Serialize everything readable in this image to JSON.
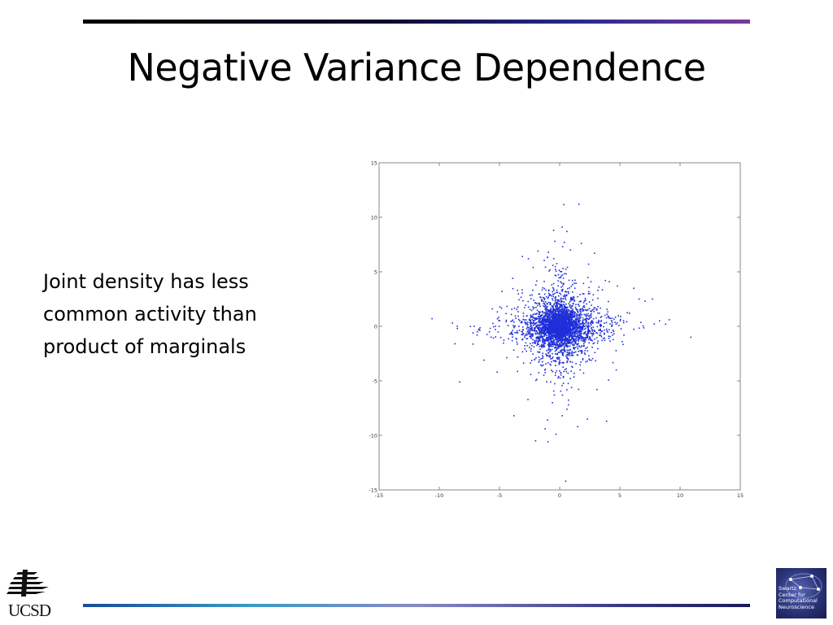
{
  "slide": {
    "title": "Negative Variance Dependence",
    "body_lines": [
      "Joint density has less",
      "common activity than",
      "product of marginals"
    ]
  },
  "logos": {
    "left_text": "UCSD",
    "right_lines": [
      "Swartz",
      "Center for",
      "Computational",
      "Neuroscience"
    ]
  },
  "colors": {
    "points": "#1f2fd8",
    "axes": "#888888",
    "title": "#000000"
  },
  "chart_data": {
    "type": "scatter",
    "title": "",
    "xlabel": "",
    "ylabel": "",
    "xlim": [
      -15,
      15
    ],
    "ylim": [
      -15,
      15
    ],
    "xticks": [
      -15,
      -10,
      -5,
      0,
      5,
      10,
      15
    ],
    "yticks": [
      -15,
      -10,
      -5,
      0,
      5,
      10,
      15
    ],
    "xtick_labels": [
      "-15",
      "-10",
      "-5",
      "0",
      "5",
      "10",
      "15"
    ],
    "ytick_labels": [
      "-15",
      "-10",
      "-5",
      "0",
      "5",
      "10",
      "15"
    ],
    "grid": false,
    "legend": "none",
    "series": [
      {
        "color": "#1f2fd8",
        "points": [
          [
            1.6,
            11.2
          ],
          [
            0.2,
            9.1
          ],
          [
            -0.5,
            8.8
          ],
          [
            0.6,
            8.7
          ],
          [
            1.8,
            7.6
          ],
          [
            -0.4,
            7.8
          ],
          [
            -1.8,
            6.9
          ],
          [
            -3.1,
            6.4
          ],
          [
            -2.6,
            6.2
          ],
          [
            0.9,
            7.0
          ],
          [
            2.4,
            5.7
          ],
          [
            -3.9,
            4.4
          ],
          [
            -4.8,
            3.2
          ],
          [
            3.8,
            4.2
          ],
          [
            4.8,
            3.7
          ],
          [
            6.6,
            2.5
          ],
          [
            7.1,
            2.3
          ],
          [
            7.7,
            2.5
          ],
          [
            8.3,
            0.5
          ],
          [
            9.1,
            0.6
          ],
          [
            8.8,
            0.2
          ],
          [
            10.9,
            -1.0
          ],
          [
            -10.6,
            0.7
          ],
          [
            -8.9,
            0.3
          ],
          [
            -8.5,
            0.0
          ],
          [
            -8.5,
            -0.2
          ],
          [
            -8.7,
            -1.6
          ],
          [
            -7.1,
            0.0
          ],
          [
            -7.2,
            -0.6
          ],
          [
            -8.3,
            -5.1
          ],
          [
            -6.3,
            -3.1
          ],
          [
            -5.2,
            -4.2
          ],
          [
            -3.8,
            -8.2
          ],
          [
            -2.0,
            -10.5
          ],
          [
            -1.2,
            -9.4
          ],
          [
            -1.0,
            -8.6
          ],
          [
            -0.3,
            -9.9
          ],
          [
            1.5,
            -9.2
          ],
          [
            2.3,
            -8.5
          ],
          [
            3.9,
            -8.7
          ],
          [
            0.5,
            -14.2
          ],
          [
            3.1,
            -5.8
          ],
          [
            4.7,
            -4.0
          ],
          [
            -0.6,
            -7.0
          ],
          [
            0.6,
            -7.6
          ],
          [
            5.2,
            -1.4
          ],
          [
            5.8,
            1.2
          ],
          [
            -5.6,
            1.6
          ],
          [
            2.9,
            6.7
          ],
          [
            -2.2,
            5.4
          ]
        ]
      }
    ],
    "generated_cluster": {
      "center": [
        0,
        0
      ],
      "sd_core": [
        0.9,
        0.8
      ],
      "sd_body": [
        1.7,
        1.6
      ],
      "arm_length_x": 6.5,
      "arm_length_y": 6.5,
      "count": 3500
    }
  }
}
